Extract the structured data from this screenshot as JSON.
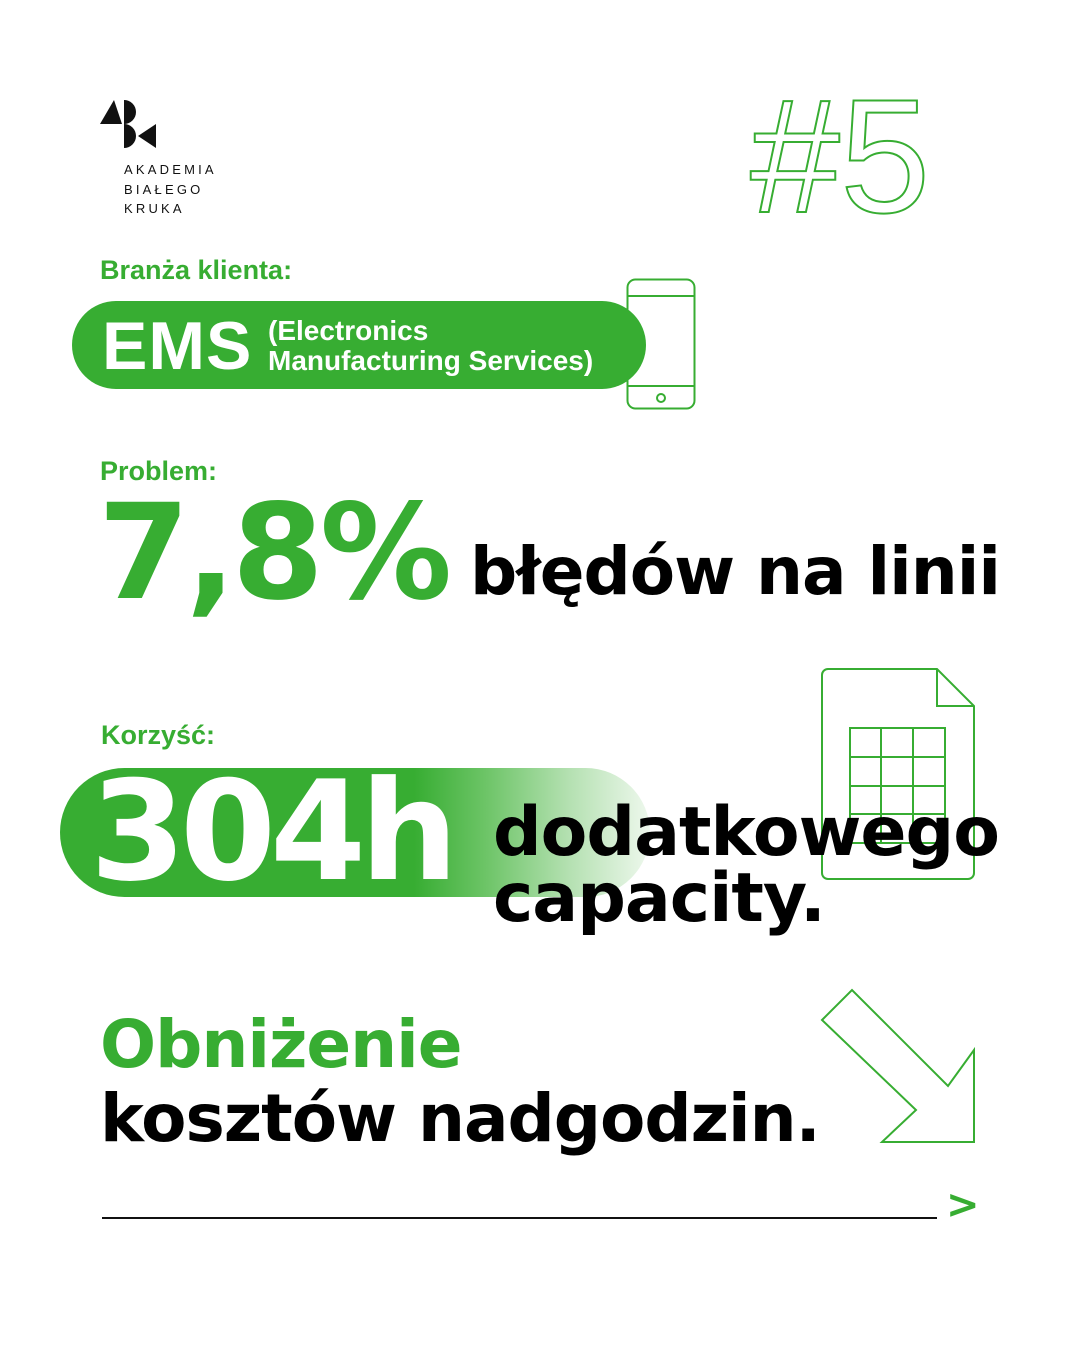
{
  "logo": {
    "lines": [
      "AKADEMIA",
      "BIAŁEGO",
      "KRUKA"
    ]
  },
  "badge": {
    "number": "#5"
  },
  "industry": {
    "label": "Branża klienta:",
    "acronym": "EMS",
    "desc_line1": "(Electronics",
    "desc_line2": "Manufacturing Services)"
  },
  "problem": {
    "label": "Problem:",
    "value": "7,8%",
    "text": "błędów na linii"
  },
  "benefit": {
    "label": "Korzyść:",
    "value": "304h",
    "text_line1": "dodatkowego",
    "text_line2": "capacity."
  },
  "result": {
    "line1": "Obniżenie",
    "line2": "kosztów nadgodzin."
  },
  "footer": {
    "arrow": ">"
  },
  "colors": {
    "accent": "#37ad32",
    "text": "#000000",
    "background": "#ffffff"
  },
  "icons": [
    "logo-mark",
    "smartphone-icon",
    "spreadsheet-icon",
    "arrow-down-right-icon",
    "chevron-right-icon"
  ]
}
